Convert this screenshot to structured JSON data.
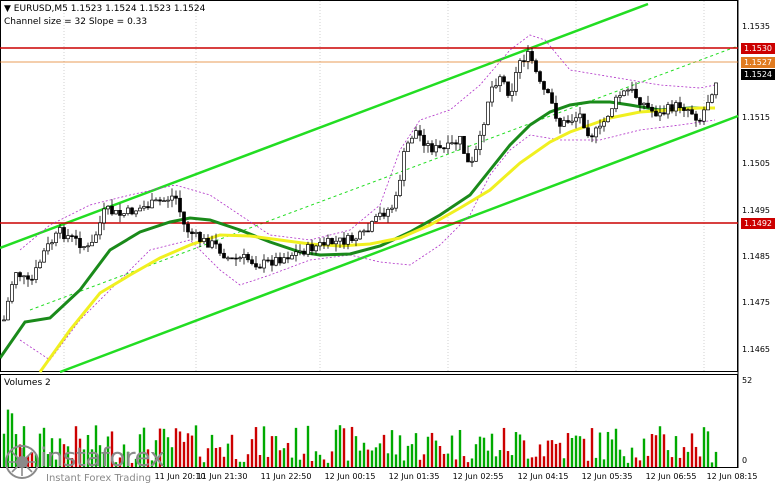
{
  "header": {
    "symbol_line": "EURUSD,M5  1.1523 1.1524 1.1523 1.1524",
    "channel_line": "Channel size = 32 Slope = 0.33"
  },
  "price_axis": {
    "labels": [
      "1.1535",
      "1.1515",
      "1.1505",
      "1.1495",
      "1.1485",
      "1.1475",
      "1.1465"
    ]
  },
  "price_tags": [
    {
      "text": "1.1530",
      "color": "#cc0000"
    },
    {
      "text": "1.1527",
      "color": "#e07b20"
    },
    {
      "text": "1.1524",
      "color": "#000000"
    },
    {
      "text": "1.1492",
      "color": "#cc0000"
    }
  ],
  "volume_panel": {
    "title": "Volumes 2",
    "max_label": "52",
    "min_label": "0"
  },
  "time_axis": {
    "labels": [
      "11 Jun 20:10",
      "11 Jun 21:30",
      "11 Jun 22:50",
      "12 Jun 00:15",
      "12 Jun 01:35",
      "12 Jun 02:55",
      "12 Jun 04:15",
      "12 Jun 05:35",
      "12 Jun 06:55",
      "12 Jun 08:15"
    ]
  },
  "watermark": {
    "brand": "instaforex",
    "tagline": "Instant Forex Trading"
  },
  "colors": {
    "channel": "#22dd22",
    "sma_fast": "#1a8a1a",
    "sma_slow": "#f0f020",
    "bands": "#b030c8",
    "bull_candle": "#000000",
    "resistance": "#cc0000",
    "volume_up": "#00aa00",
    "volume_down": "#cc0000"
  }
}
